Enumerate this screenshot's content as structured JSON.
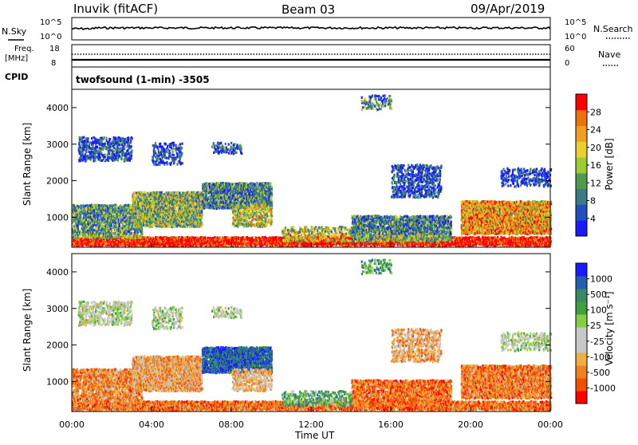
{
  "header": {
    "station": "Inuvik (fitACF)",
    "beam": "Beam 03",
    "date": "09/Apr/2019"
  },
  "strip_nsky": {
    "left_label": "N.Sky",
    "right_label": "N.Search",
    "left_ticks": [
      "10^5",
      "10^0"
    ],
    "right_ticks": [
      "10^5",
      "10^0"
    ]
  },
  "strip_freq": {
    "left_label_1": "Freq.",
    "left_label_2": "[MHz]",
    "right_label": "Nave",
    "left_ticks": [
      "18",
      "8"
    ],
    "right_ticks": [
      "60",
      "0"
    ]
  },
  "cpid": {
    "label": "CPID",
    "value": "twofsound (1-min) -3505"
  },
  "axes": {
    "ylabel": "Slant Range [km]",
    "xlabel": "Time UT",
    "y_ticks": [
      "1000",
      "2000",
      "3000",
      "4000"
    ],
    "x_ticks": [
      "00:00",
      "04:00",
      "08:00",
      "12:00",
      "16:00",
      "20:00",
      "00:00"
    ]
  },
  "colors": {
    "power_scale": [
      "#1a1aff",
      "#2050c0",
      "#3a7a8a",
      "#4f9a4f",
      "#9acd32",
      "#e8d030",
      "#f0a020",
      "#f07010",
      "#ff0000"
    ],
    "velocity_scale": [
      "#ff0000",
      "#f05000",
      "#f08020",
      "#f0b040",
      "#c8c8c8",
      "#c8c8c8",
      "#80d040",
      "#40a040",
      "#3a8a6a",
      "#2060b0",
      "#1a1aff"
    ]
  },
  "chart_data": [
    {
      "type": "heatmap",
      "name": "power",
      "colorbar_label": "Power [dB]",
      "colorbar_ticks": [
        "4",
        "8",
        "12",
        "16",
        "20",
        "24",
        "28"
      ],
      "x_range_hours": [
        0,
        24
      ],
      "y_range_km": [
        180,
        4500
      ]
    },
    {
      "type": "heatmap",
      "name": "velocity",
      "colorbar_label": "Velocity [m s⁻¹]",
      "colorbar_ticks": [
        "-1000",
        "-500",
        "-100",
        "-25",
        "25",
        "100",
        "500",
        "1000"
      ],
      "x_range_hours": [
        0,
        24
      ],
      "y_range_km": [
        180,
        4500
      ]
    }
  ]
}
